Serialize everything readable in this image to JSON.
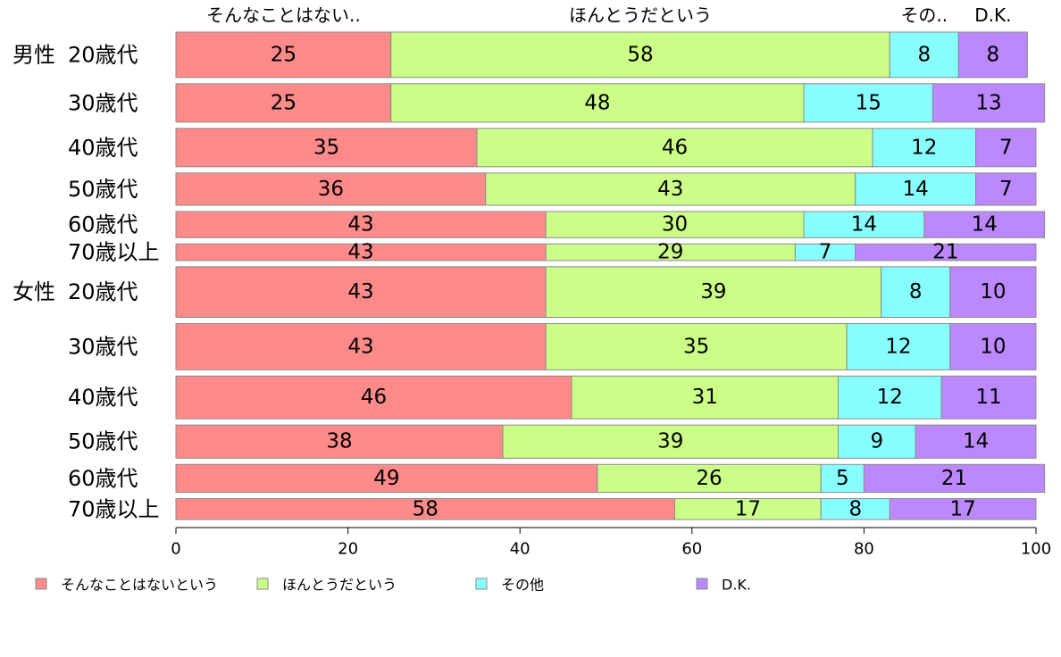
{
  "chart_data": {
    "type": "bar",
    "orientation": "horizontal",
    "stacked": true,
    "xlim": [
      0,
      100
    ],
    "x_ticks": [
      "0",
      "20",
      "40",
      "60",
      "80",
      "100"
    ],
    "grid": false,
    "legend_position": "bottom",
    "top_labels": [
      "そんなことはない..",
      "ほんとうだという",
      "その..",
      "D.K."
    ],
    "groups": [
      "男性",
      "女性"
    ],
    "categories": [
      "20歳代",
      "30歳代",
      "40歳代",
      "50歳代",
      "60歳代",
      "70歳以上",
      "20歳代",
      "30歳代",
      "40歳代",
      "50歳代",
      "60歳代",
      "70歳以上"
    ],
    "row_weights": [
      52,
      44,
      44,
      37,
      30,
      19,
      58,
      53,
      49,
      38,
      32,
      24
    ],
    "series": [
      {
        "name": "そんなことはないという",
        "color": "#ff8a8a",
        "values": [
          25,
          25,
          35,
          36,
          43,
          43,
          43,
          43,
          46,
          38,
          49,
          58
        ]
      },
      {
        "name": "ほんとうだという",
        "color": "#ccff88",
        "values": [
          58,
          48,
          46,
          43,
          30,
          29,
          39,
          35,
          31,
          39,
          26,
          17
        ]
      },
      {
        "name": "その他",
        "color": "#88ffff",
        "values": [
          8,
          15,
          12,
          14,
          14,
          7,
          8,
          12,
          12,
          9,
          5,
          8
        ]
      },
      {
        "name": "D.K.",
        "color": "#bb88ff",
        "values": [
          8,
          13,
          7,
          7,
          14,
          21,
          10,
          10,
          11,
          14,
          21,
          17
        ]
      }
    ]
  }
}
